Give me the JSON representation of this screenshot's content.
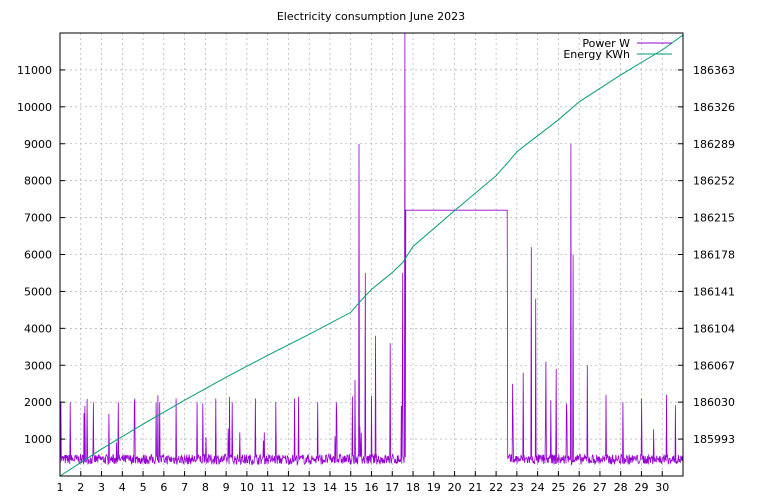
{
  "chart_data": {
    "type": "line",
    "title": "Electricity consumption June 2023",
    "x_ticks": [
      "1",
      "2",
      "3",
      "4",
      "5",
      "6",
      "7",
      "8",
      "9",
      "10",
      "11",
      "12",
      "13",
      "14",
      "15",
      "16",
      "17",
      "18",
      "19",
      "20",
      "21",
      "22",
      "23",
      "24",
      "25",
      "26",
      "27",
      "28",
      "29",
      "30"
    ],
    "xlim": [
      1,
      31
    ],
    "y_left": {
      "lim": [
        0,
        12000
      ],
      "ticks": [
        "1000",
        "2000",
        "3000",
        "4000",
        "5000",
        "6000",
        "7000",
        "8000",
        "9000",
        "10000",
        "11000"
      ],
      "tick_values": [
        1000,
        2000,
        3000,
        4000,
        5000,
        6000,
        7000,
        8000,
        9000,
        10000,
        11000
      ]
    },
    "y_right": {
      "lim": [
        185956,
        186400
      ],
      "ticks": [
        "185993",
        "186030",
        "186067",
        "186104",
        "186141",
        "186178",
        "186215",
        "186252",
        "186289",
        "186326",
        "186363"
      ],
      "tick_values": [
        185993,
        186030,
        186067,
        186104,
        186141,
        186178,
        186215,
        186252,
        186289,
        186326,
        186363
      ]
    },
    "grid": true,
    "legend_position": "top-right",
    "series": [
      {
        "name": "Power W",
        "axis": "left",
        "color": "#9400d3",
        "baseline": 450,
        "spikes": [
          [
            1.05,
            2000
          ],
          [
            1.5,
            2000
          ],
          [
            2.2,
            1900
          ],
          [
            2.6,
            2000
          ],
          [
            3.8,
            2000
          ],
          [
            4.6,
            2100
          ],
          [
            5.8,
            2000
          ],
          [
            6.6,
            2100
          ],
          [
            7.6,
            2000
          ],
          [
            8.5,
            2100
          ],
          [
            9.3,
            2000
          ],
          [
            10.4,
            2100
          ],
          [
            11.4,
            2000
          ],
          [
            12.3,
            2100
          ],
          [
            13.4,
            2000
          ],
          [
            14.3,
            2000
          ],
          [
            15.2,
            2600
          ],
          [
            15.4,
            9000
          ],
          [
            15.7,
            5500
          ],
          [
            16.2,
            3800
          ],
          [
            16.9,
            3600
          ],
          [
            17.5,
            5500
          ],
          [
            17.6,
            12000
          ],
          [
            22.8,
            2500
          ],
          [
            23.3,
            2800
          ],
          [
            23.7,
            6200
          ],
          [
            23.9,
            4800
          ],
          [
            24.4,
            3100
          ],
          [
            24.9,
            2900
          ],
          [
            25.6,
            9000
          ],
          [
            25.7,
            6000
          ],
          [
            26.4,
            3000
          ],
          [
            27.3,
            2200
          ],
          [
            28.1,
            2000
          ],
          [
            29.0,
            2100
          ],
          [
            30.2,
            2200
          ]
        ],
        "plateau": {
          "start": 17.65,
          "end": 22.55,
          "value": 7200
        }
      },
      {
        "name": "Energy KWh",
        "axis": "right",
        "color": "#009e73",
        "x": [
          1,
          3,
          5,
          7,
          9,
          11,
          13,
          15,
          15.5,
          16,
          17,
          17.5,
          18,
          20,
          22,
          22.6,
          23,
          24,
          25,
          26,
          28,
          30,
          31
        ],
        "y": [
          185956,
          185983,
          186008,
          186032,
          186055,
          186077,
          186098,
          186120,
          186132,
          186143,
          186160,
          186170,
          186186,
          186222,
          186257,
          186271,
          186281,
          186297,
          186313,
          186331,
          186358,
          186383,
          186398
        ]
      }
    ]
  }
}
